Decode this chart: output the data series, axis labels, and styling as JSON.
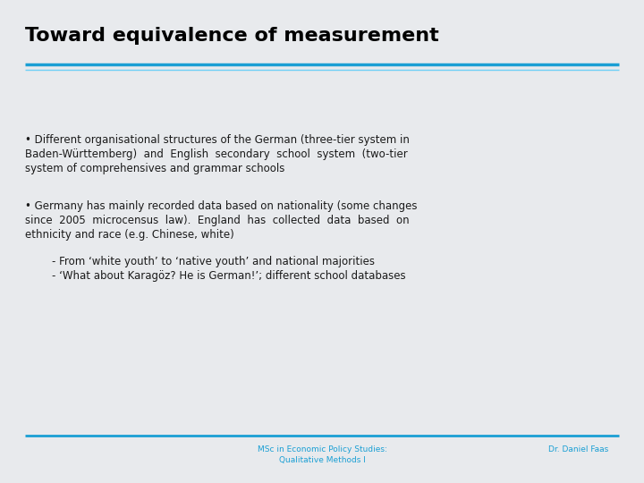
{
  "title": "Toward equivalence of measurement",
  "title_fontsize": 16,
  "title_color": "#000000",
  "bg_color": "#e8eaed",
  "line1_color": "#1a9fd4",
  "line2_color": "#6dcff6",
  "footer_left": "MSc in Economic Policy Studies:\nQualitative Methods I",
  "footer_right": "Dr. Daniel Faas",
  "footer_color": "#1a9fd4",
  "footer_fontsize": 6.5,
  "bullet1_line1": "• Different organisational structures of the German (three-tier system in",
  "bullet1_line2": "Baden-Württemberg)  and  English  secondary  school  system  (two-tier",
  "bullet1_line3": "system of comprehensives and grammar schools",
  "bullet2_line1": "• Germany has mainly recorded data based on nationality (some changes",
  "bullet2_line2": "since  2005  microcensus  law).  England  has  collected  data  based  on",
  "bullet2_line3": "ethnicity and race (e.g. Chinese, white)",
  "sub1": "        - From ‘white youth’ to ‘native youth’ and national majorities",
  "sub2": "        - ‘What about Karagöz? He is German!’; different school databases",
  "body_fontsize": 8.5,
  "body_color": "#1a1a1a",
  "body_font": "DejaVu Sans"
}
